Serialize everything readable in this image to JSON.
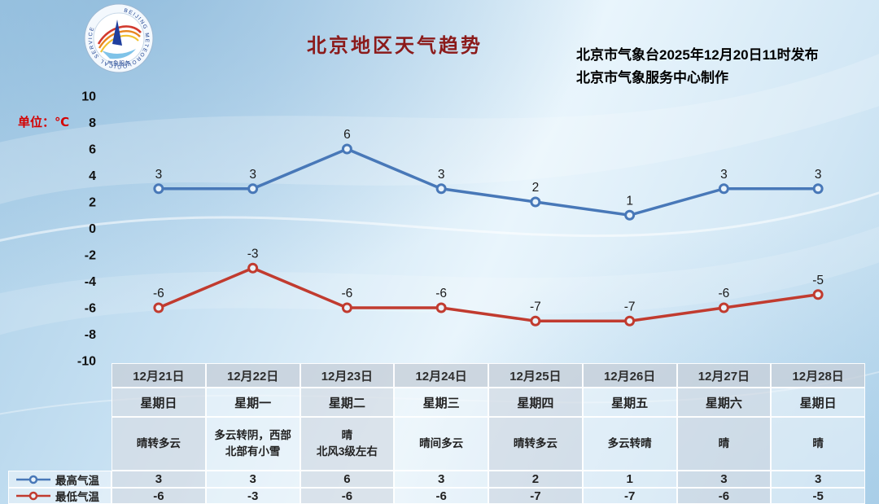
{
  "page": {
    "title": "北京地区天气趋势",
    "issued_line1": "北京市气象台2025年12月20日11时发布",
    "issued_line2": "北京市气象服务中心制作",
    "unit_label": "单位：℃"
  },
  "logo": {
    "ring_text": "BEIJING METEOROLOGICAL SERVICE",
    "cn_text": "气象服务"
  },
  "colors": {
    "max_series": "#4878b8",
    "min_series": "#c13b2f",
    "title": "#8b1a1a"
  },
  "chart_data": {
    "type": "line",
    "title": "北京地区天气趋势",
    "categories": [
      "12月21日",
      "12月22日",
      "12月23日",
      "12月24日",
      "12月25日",
      "12月26日",
      "12月27日",
      "12月28日"
    ],
    "weekdays": [
      "星期日",
      "星期一",
      "星期二",
      "星期三",
      "星期四",
      "星期五",
      "星期六",
      "星期日"
    ],
    "weather": [
      "晴转多云",
      "多云转阴，西部北部有小雪",
      "晴\n北风3级左右",
      "晴间多云",
      "晴转多云",
      "多云转晴",
      "晴",
      "晴"
    ],
    "series": [
      {
        "name": "最高气温",
        "color": "#4878b8",
        "values": [
          3,
          3,
          6,
          3,
          2,
          1,
          3,
          3
        ]
      },
      {
        "name": "最低气温",
        "color": "#c13b2f",
        "values": [
          -6,
          -3,
          -6,
          -6,
          -7,
          -7,
          -6,
          -5
        ]
      }
    ],
    "ylim": [
      -10,
      10
    ],
    "yticks": [
      10,
      8,
      6,
      4,
      2,
      0,
      -2,
      -4,
      -6,
      -8,
      -10
    ],
    "ylabel_unit": "℃",
    "grid": false,
    "legend_position": "bottom-left",
    "legend": [
      "最高气温",
      "最低气温"
    ]
  }
}
